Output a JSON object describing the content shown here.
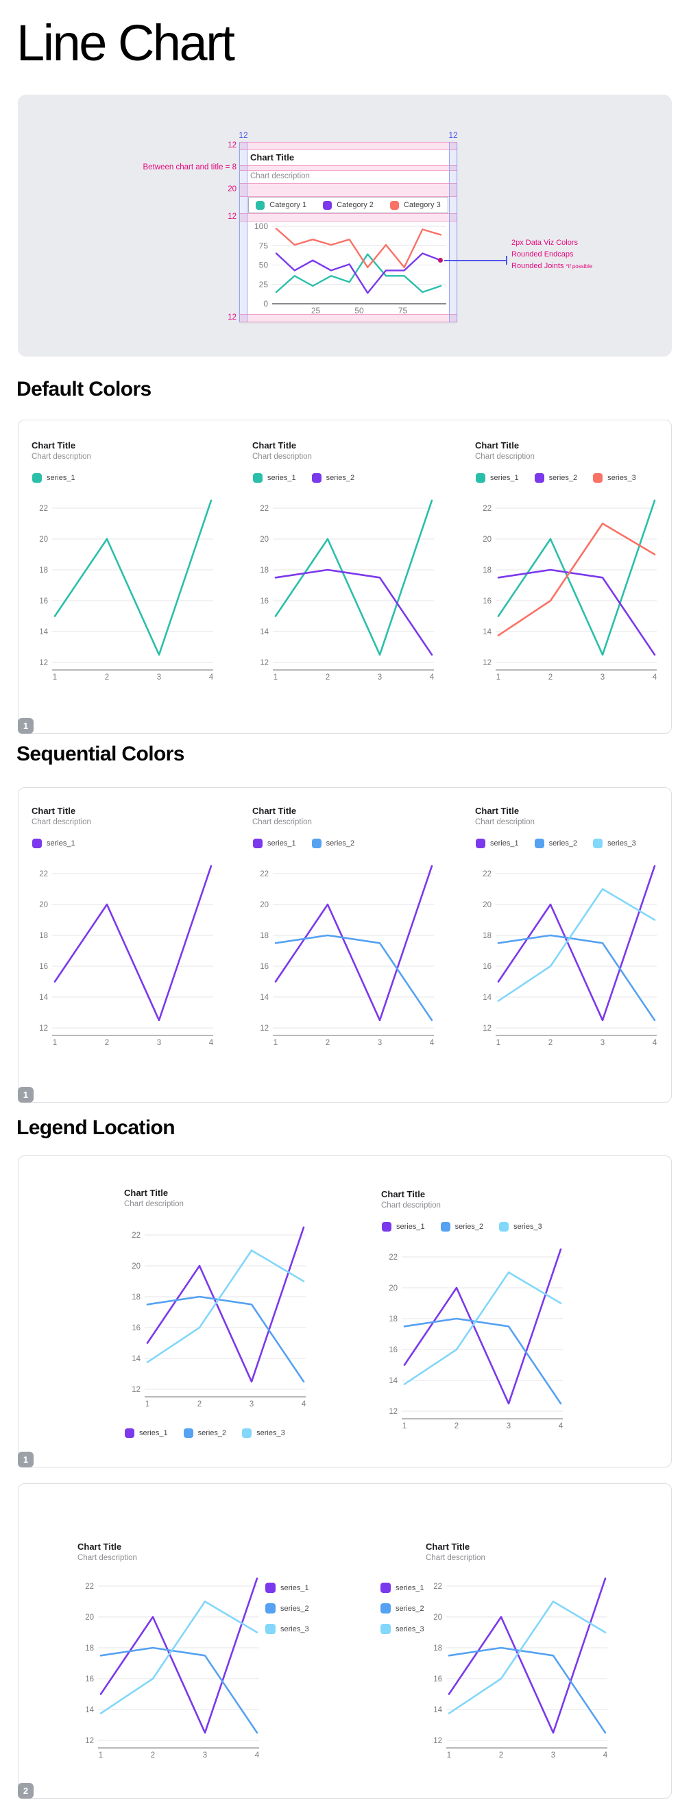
{
  "page": {
    "title": "Line Chart"
  },
  "colors": {
    "teal": "#2ABFA9",
    "purple": "#7B38EC",
    "salmon": "#FA7166",
    "blue": "#55A1F2",
    "lightblue": "#82D7FA",
    "pink": "#E3097E",
    "indigo": "#4F55E7",
    "badge_bg": "#9CA1A8",
    "grid": "#E4E4E8",
    "axis": "#8E8E93",
    "tick_text": "#7B7B80"
  },
  "card": {
    "title": "Chart Title",
    "description": "Chart description"
  },
  "spec": {
    "top_gap_labels": [
      "12",
      "12"
    ],
    "left_labels": [
      "12",
      "Between chart and title = 8",
      "20",
      "12"
    ],
    "bottom_label": "12",
    "annotation": {
      "line1": "2px Data Viz Colors",
      "line2": "Rounded Endcaps",
      "line3": "Rounded Joints",
      "note": "*if possible"
    },
    "legend": [
      {
        "label": "Category 1",
        "color": "teal"
      },
      {
        "label": "Category 2",
        "color": "purple"
      },
      {
        "label": "Category 3",
        "color": "salmon"
      }
    ],
    "chart": {
      "y_ticks": [
        100,
        75,
        50,
        25,
        0
      ],
      "x_ticks": [
        25,
        50,
        75
      ],
      "series": [
        {
          "name": "Category 1",
          "color": "teal",
          "values": [
            15,
            36,
            23,
            36,
            28,
            64,
            36,
            36,
            15,
            23
          ]
        },
        {
          "name": "Category 2",
          "color": "purple",
          "values": [
            65,
            43,
            56,
            43,
            51,
            14,
            43,
            43,
            65,
            56
          ]
        },
        {
          "name": "Category 3",
          "color": "salmon",
          "values": [
            97,
            76,
            83,
            76,
            83,
            47,
            76,
            47,
            96,
            89
          ]
        }
      ]
    }
  },
  "axis": {
    "y_ticks": [
      22,
      20,
      18,
      16,
      14,
      12
    ],
    "x_ticks": [
      1,
      2,
      3,
      4
    ]
  },
  "series_values": {
    "series_1": [
      15,
      20,
      12.5,
      22.5
    ],
    "series_2": [
      17.5,
      18,
      17.5,
      12.5
    ],
    "series_3": [
      13.75,
      16,
      21,
      19
    ]
  },
  "sections": [
    {
      "heading": "Default Colors",
      "badge": "1",
      "charts": [
        {
          "legend_position": "top",
          "series": [
            {
              "name": "series_1",
              "color": "teal"
            }
          ]
        },
        {
          "legend_position": "top",
          "series": [
            {
              "name": "series_1",
              "color": "teal"
            },
            {
              "name": "series_2",
              "color": "purple"
            }
          ]
        },
        {
          "legend_position": "top",
          "series": [
            {
              "name": "series_1",
              "color": "teal"
            },
            {
              "name": "series_2",
              "color": "purple"
            },
            {
              "name": "series_3",
              "color": "salmon"
            }
          ]
        }
      ]
    },
    {
      "heading": "Sequential Colors",
      "badge": "1",
      "charts": [
        {
          "legend_position": "top",
          "series": [
            {
              "name": "series_1",
              "color": "purple"
            }
          ]
        },
        {
          "legend_position": "top",
          "series": [
            {
              "name": "series_1",
              "color": "purple"
            },
            {
              "name": "series_2",
              "color": "blue"
            }
          ]
        },
        {
          "legend_position": "top",
          "series": [
            {
              "name": "series_1",
              "color": "purple"
            },
            {
              "name": "series_2",
              "color": "blue"
            },
            {
              "name": "series_3",
              "color": "lightblue"
            }
          ]
        }
      ]
    },
    {
      "heading": "Legend Location",
      "panels": [
        {
          "badge": "1",
          "charts": [
            {
              "legend_position": "bottom",
              "series": [
                {
                  "name": "series_1",
                  "color": "purple"
                },
                {
                  "name": "series_2",
                  "color": "blue"
                },
                {
                  "name": "series_3",
                  "color": "lightblue"
                }
              ]
            },
            {
              "legend_position": "top",
              "series": [
                {
                  "name": "series_1",
                  "color": "purple"
                },
                {
                  "name": "series_2",
                  "color": "blue"
                },
                {
                  "name": "series_3",
                  "color": "lightblue"
                }
              ]
            }
          ]
        },
        {
          "badge": "2",
          "charts": [
            {
              "legend_position": "right",
              "series": [
                {
                  "name": "series_1",
                  "color": "purple"
                },
                {
                  "name": "series_2",
                  "color": "blue"
                },
                {
                  "name": "series_3",
                  "color": "lightblue"
                }
              ]
            },
            {
              "legend_position": "left",
              "series": [
                {
                  "name": "series_1",
                  "color": "purple"
                },
                {
                  "name": "series_2",
                  "color": "blue"
                },
                {
                  "name": "series_3",
                  "color": "lightblue"
                }
              ]
            }
          ]
        }
      ]
    }
  ],
  "chart_data": {
    "type": "line",
    "x": [
      1,
      2,
      3,
      4
    ],
    "ylim": [
      12,
      22
    ],
    "grid": true,
    "series": [
      {
        "name": "series_1",
        "values": [
          15,
          20,
          12.5,
          22.5
        ]
      },
      {
        "name": "series_2",
        "values": [
          17.5,
          18,
          17.5,
          12.5
        ]
      },
      {
        "name": "series_3",
        "values": [
          13.75,
          16,
          21,
          19
        ]
      }
    ],
    "spec_chart": {
      "type": "line",
      "ylim": [
        0,
        100
      ],
      "x_ticks": [
        25,
        50,
        75
      ],
      "series": [
        {
          "name": "Category 1",
          "values": [
            15,
            36,
            23,
            36,
            28,
            64,
            36,
            36,
            15,
            23
          ]
        },
        {
          "name": "Category 2",
          "values": [
            65,
            43,
            56,
            43,
            51,
            14,
            43,
            43,
            65,
            56
          ]
        },
        {
          "name": "Category 3",
          "values": [
            97,
            76,
            83,
            76,
            83,
            47,
            76,
            47,
            96,
            89
          ]
        }
      ]
    }
  }
}
